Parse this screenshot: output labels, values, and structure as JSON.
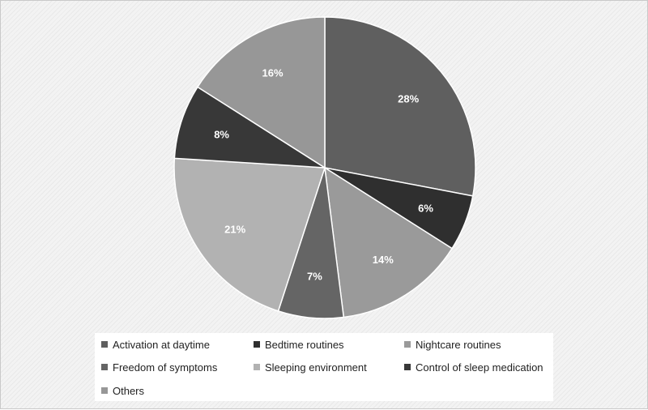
{
  "chart_data": {
    "type": "pie",
    "start_angle_deg": 0,
    "direction": "clockwise",
    "slices": [
      {
        "label": "Activation at daytime",
        "value": 28,
        "value_label": "28%",
        "color": "#5f5f5f"
      },
      {
        "label": "Bedtime routines",
        "value": 6,
        "value_label": "6%",
        "color": "#2f2f2f"
      },
      {
        "label": "Nightcare routines",
        "value": 14,
        "value_label": "14%",
        "color": "#9a9a9a"
      },
      {
        "label": "Freedom of symptoms",
        "value": 7,
        "value_label": "7%",
        "color": "#656565"
      },
      {
        "label": "Sleeping environment",
        "value": 21,
        "value_label": "21%",
        "color": "#b2b2b2"
      },
      {
        "label": "Control of sleep medication",
        "value": 8,
        "value_label": "8%",
        "color": "#383838"
      },
      {
        "label": "Others",
        "value": 16,
        "value_label": "16%",
        "color": "#979797"
      }
    ],
    "legend_position": "bottom"
  }
}
